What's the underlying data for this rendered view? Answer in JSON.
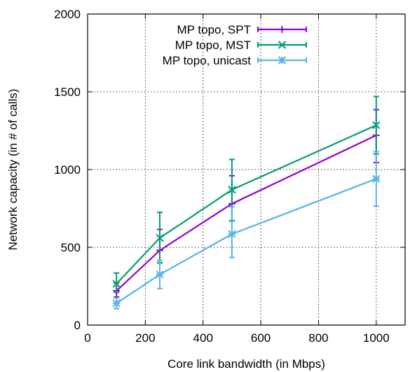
{
  "chart_data": {
    "type": "line",
    "title": "",
    "xlabel": "Core link bandwidth (in Mbps)",
    "ylabel": "Network capacity (in # of calls)",
    "xlim": [
      0,
      1100
    ],
    "ylim": [
      0,
      2000
    ],
    "xticks": [
      0,
      200,
      400,
      600,
      800,
      1000
    ],
    "yticks": [
      0,
      500,
      1000,
      1500,
      2000
    ],
    "grid": true,
    "legend_position": "top-right",
    "series": [
      {
        "name": "MP topo, SPT",
        "color": "#9400d3",
        "marker": "plus",
        "x": [
          100,
          250,
          500,
          1000
        ],
        "y": [
          220,
          480,
          780,
          1220
        ],
        "err_low": [
          180,
          400,
          670,
          1045
        ],
        "err_high": [
          270,
          615,
          960,
          1385
        ]
      },
      {
        "name": "MP topo, MST",
        "color": "#009e73",
        "marker": "cross",
        "x": [
          100,
          250,
          500,
          1000
        ],
        "y": [
          265,
          560,
          870,
          1285
        ],
        "err_low": [
          210,
          400,
          670,
          1100
        ],
        "err_high": [
          335,
          725,
          1065,
          1470
        ]
      },
      {
        "name": "MP topo, unicast",
        "color": "#56b4e9",
        "marker": "star",
        "x": [
          100,
          250,
          500,
          1000
        ],
        "y": [
          140,
          325,
          585,
          940
        ],
        "err_low": [
          105,
          235,
          435,
          765
        ],
        "err_high": [
          175,
          415,
          760,
          1115
        ]
      }
    ]
  }
}
